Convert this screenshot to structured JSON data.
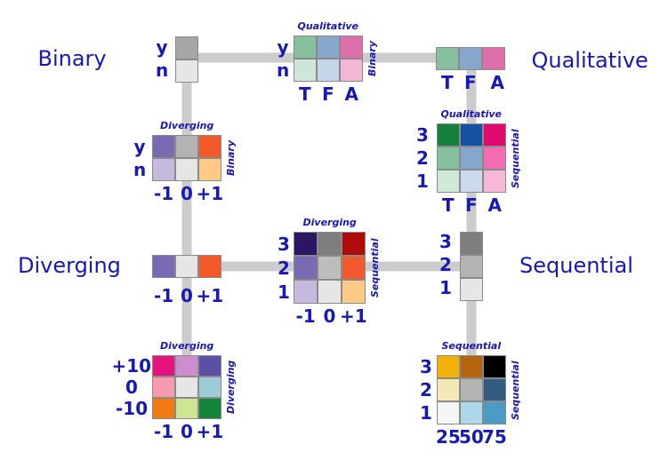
{
  "hubs": {
    "binary": "Binary",
    "qualitative": "Qualitative",
    "diverging": "Diverging",
    "sequential": "Sequential"
  },
  "colors": {
    "label": "#1818b4",
    "connector": "#cccccc",
    "cell_border": "#8a8a8a"
  },
  "schemes": {
    "binary": {
      "ticks": [
        "y",
        "n"
      ],
      "colors": [
        "#a6a6a6",
        "#e6e6e6"
      ]
    },
    "qualitative": {
      "ticks": [
        "T",
        "F",
        "A"
      ],
      "colors": [
        "#86bf9d",
        "#86a6cc",
        "#de6ea9"
      ]
    },
    "diverging": {
      "ticks": [
        "-1",
        "0",
        "+1"
      ],
      "colors": [
        "#7a6ab4",
        "#e6e6e6",
        "#f25a2c"
      ]
    },
    "sequential": {
      "ticks": [
        "3",
        "2",
        "1"
      ],
      "colors": [
        "#7e7e7e",
        "#b3b3b3",
        "#e6e6e6"
      ]
    },
    "binary_qualitative": {
      "top": "Qualitative",
      "side": "Binary",
      "row_ticks": [
        "y",
        "n"
      ],
      "col_ticks": [
        "T",
        "F",
        "A"
      ],
      "colors": [
        [
          "#86bf9d",
          "#86a6cc",
          "#de6ea9"
        ],
        [
          "#cde6d7",
          "#c6d6ea",
          "#f5b6d6"
        ]
      ]
    },
    "binary_diverging": {
      "top": "Diverging",
      "side": "Binary",
      "row_ticks": [
        "y",
        "n"
      ],
      "col_ticks": [
        "-1",
        "0",
        "+1"
      ],
      "colors": [
        [
          "#7a6ab4",
          "#b3b3b3",
          "#f25a2c"
        ],
        [
          "#c6b9de",
          "#e6e6e6",
          "#fdcb86"
        ]
      ]
    },
    "qualitative_sequential": {
      "top": "Qualitative",
      "side": "Sequential",
      "row_ticks": [
        "3",
        "2",
        "1"
      ],
      "col_ticks": [
        "T",
        "F",
        "A"
      ],
      "colors": [
        [
          "#14803c",
          "#1650a0",
          "#e00a6e"
        ],
        [
          "#86bf9d",
          "#86a6cc",
          "#f26eb0"
        ],
        [
          "#cfe8d8",
          "#ccdaee",
          "#f8b7d7"
        ]
      ]
    },
    "diverging_sequential": {
      "top": "Diverging",
      "side": "Sequential",
      "row_ticks": [
        "3",
        "2",
        "1"
      ],
      "col_ticks": [
        "-1",
        "0",
        "+1"
      ],
      "colors": [
        [
          "#2a1664",
          "#7e7e7e",
          "#b00a0a"
        ],
        [
          "#7a6ab4",
          "#bdbdbd",
          "#f25a2c"
        ],
        [
          "#c6b9de",
          "#e6e6e6",
          "#fdcb86"
        ]
      ]
    },
    "diverging_diverging": {
      "top": "Diverging",
      "side": "Diverging",
      "row_ticks": [
        "+10",
        "0",
        "-10"
      ],
      "col_ticks": [
        "-1",
        "0",
        "+1"
      ],
      "colors": [
        [
          "#e8127e",
          "#cc8ed0",
          "#5a50a6"
        ],
        [
          "#f89aae",
          "#e6e6e6",
          "#9ccad6"
        ],
        [
          "#f27a12",
          "#cee692",
          "#14843c"
        ]
      ]
    },
    "sequential_sequential": {
      "top": "Sequential",
      "side": "Sequential",
      "row_ticks": [
        "3",
        "2",
        "1"
      ],
      "col_ticks": [
        "25",
        "50",
        "75"
      ],
      "colors": [
        [
          "#f2b20a",
          "#b4640a",
          "#000000"
        ],
        [
          "#f5e8b6",
          "#b3b3b3",
          "#335a80"
        ],
        [
          "#f5f5f5",
          "#acd8e8",
          "#4a9cc6"
        ]
      ]
    }
  }
}
